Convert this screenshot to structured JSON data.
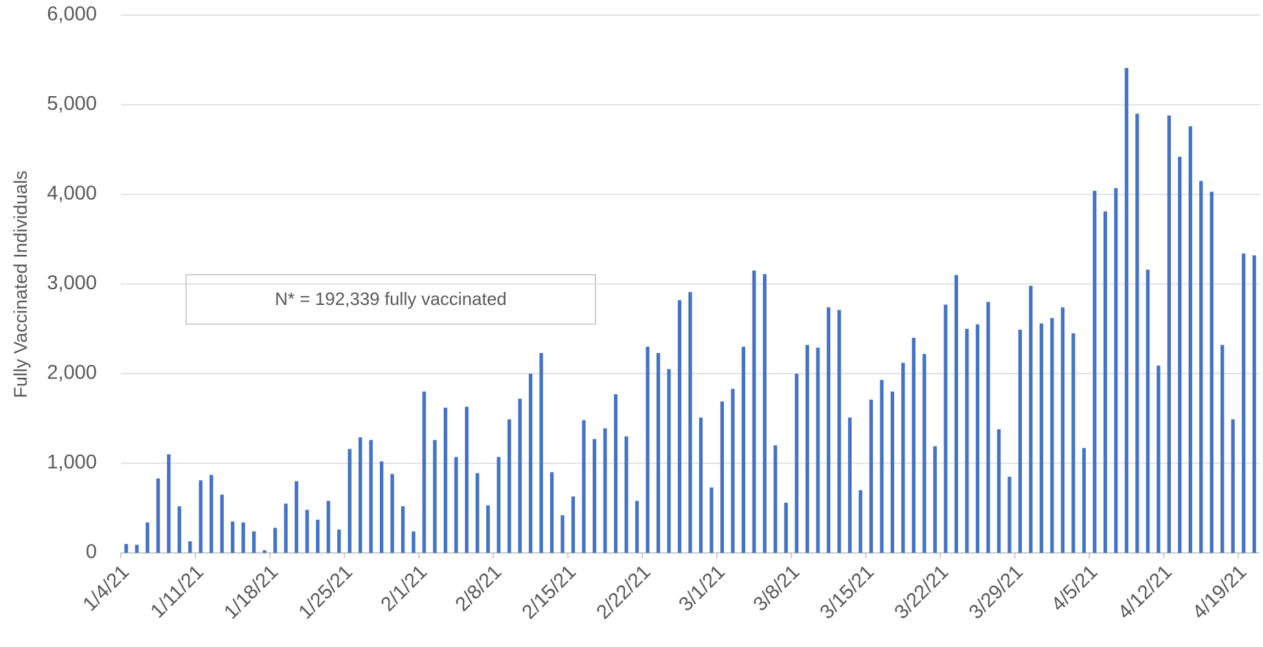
{
  "chart_data": {
    "type": "bar",
    "y_label": "Fully Vaccinated Individuals",
    "annotation": "N* = 192,339 fully vaccinated",
    "color": "#4472c4",
    "grid": true,
    "ylim": [
      0,
      6000
    ],
    "yticks": [
      0,
      {
        "value": 1000,
        "label": "1,000"
      },
      {
        "value": 2000,
        "label": "2,000"
      },
      {
        "value": 3000,
        "label": "3,000"
      },
      {
        "value": 4000,
        "label": "4,000"
      },
      {
        "value": 5000,
        "label": "5,000"
      },
      {
        "value": 6000,
        "label": "6,000"
      }
    ],
    "categories": [
      "1/4/21",
      null,
      null,
      null,
      null,
      null,
      null,
      "1/11/21",
      null,
      null,
      null,
      null,
      null,
      null,
      "1/18/21",
      null,
      null,
      null,
      null,
      null,
      null,
      "1/25/21",
      null,
      null,
      null,
      null,
      null,
      null,
      "2/1/21",
      null,
      null,
      null,
      null,
      null,
      null,
      "2/8/21",
      null,
      null,
      null,
      null,
      null,
      null,
      "2/15/21",
      null,
      null,
      null,
      null,
      null,
      null,
      "2/22/21",
      null,
      null,
      null,
      null,
      null,
      null,
      "3/1/21",
      null,
      null,
      null,
      null,
      null,
      null,
      "3/8/21",
      null,
      null,
      null,
      null,
      null,
      null,
      "3/15/21",
      null,
      null,
      null,
      null,
      null,
      null,
      "3/22/21",
      null,
      null,
      null,
      null,
      null,
      null,
      "3/29/21",
      null,
      null,
      null,
      null,
      null,
      null,
      "4/5/21",
      null,
      null,
      null,
      null,
      null,
      null,
      "4/12/21",
      null,
      null,
      null,
      null,
      null,
      null,
      "4/19/21",
      null
    ],
    "values": [
      100,
      90,
      340,
      830,
      1100,
      520,
      130,
      810,
      870,
      650,
      350,
      340,
      240,
      30,
      280,
      550,
      800,
      480,
      370,
      580,
      260,
      1160,
      1290,
      1260,
      1020,
      880,
      520,
      240,
      1800,
      1260,
      1620,
      1070,
      1630,
      890,
      530,
      1070,
      1490,
      1720,
      2000,
      2230,
      900,
      420,
      630,
      1480,
      1270,
      1390,
      1770,
      1300,
      580,
      2300,
      2230,
      2050,
      2820,
      2910,
      1510,
      730,
      1690,
      1830,
      2300,
      3150,
      3110,
      1200,
      560,
      2000,
      2320,
      2290,
      2740,
      2710,
      1510,
      700,
      1710,
      1930,
      1800,
      2120,
      2400,
      2220,
      1190,
      2770,
      3100,
      2500,
      2550,
      2800,
      1380,
      850,
      2490,
      2980,
      2560,
      2620,
      2740,
      2450,
      1170,
      4040,
      3810,
      4070,
      5410,
      4900,
      3160,
      2090,
      4880,
      4420,
      4760,
      4150,
      4030,
      2320,
      1490,
      3340,
      3320
    ]
  }
}
